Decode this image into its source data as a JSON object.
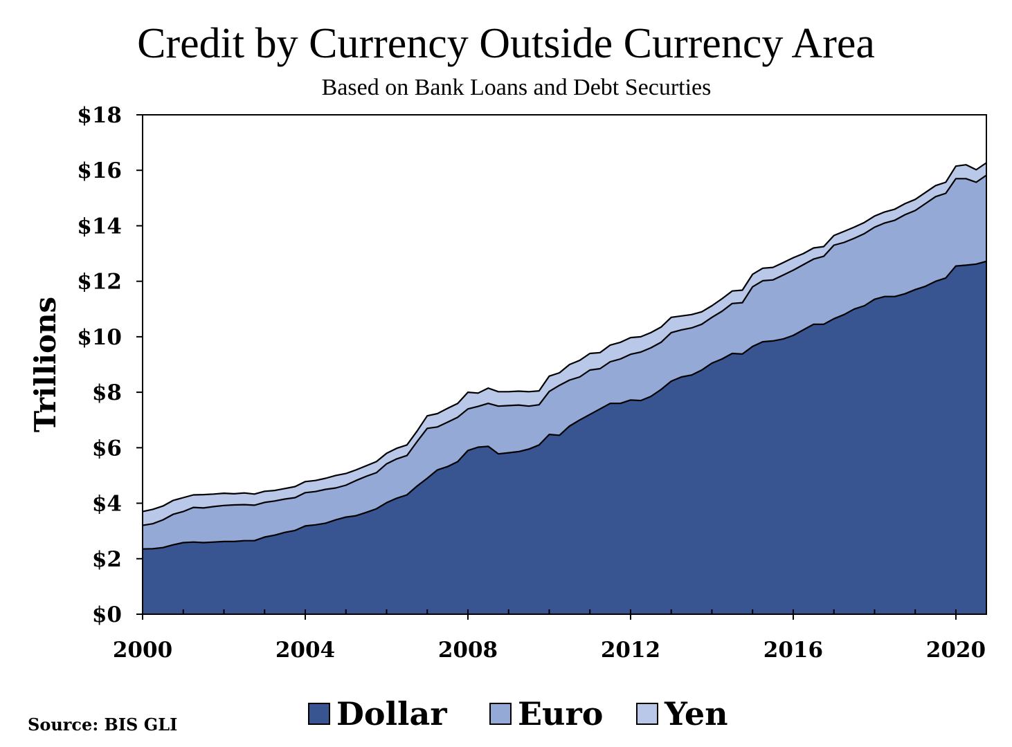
{
  "chart_data": {
    "type": "area",
    "stacked": true,
    "title": "Credit by Currency Outside Currency Area",
    "subtitle": "Based on Bank Loans and Debt Securties",
    "ylabel": "Trillions",
    "xlabel": "",
    "source": "Source: BIS GLI",
    "xlim": [
      2000,
      2020.75
    ],
    "ylim": [
      0,
      18
    ],
    "x_ticks": [
      2000,
      2004,
      2008,
      2012,
      2016,
      2020
    ],
    "x_tick_labels": [
      "2000",
      "2004",
      "2008",
      "2012",
      "2016",
      "2020"
    ],
    "y_ticks": [
      0,
      2,
      4,
      6,
      8,
      10,
      12,
      14,
      16,
      18
    ],
    "y_tick_labels": [
      "$0",
      "$2",
      "$4",
      "$6",
      "$8",
      "$10",
      "$12",
      "$14",
      "$16",
      "$18"
    ],
    "grid": false,
    "legend": "bottom",
    "x": [
      2000,
      2000.25,
      2000.5,
      2000.75,
      2001,
      2001.25,
      2001.5,
      2001.75,
      2002,
      2002.25,
      2002.5,
      2002.75,
      2003,
      2003.25,
      2003.5,
      2003.75,
      2004,
      2004.25,
      2004.5,
      2004.75,
      2005,
      2005.25,
      2005.5,
      2005.75,
      2006,
      2006.25,
      2006.5,
      2006.75,
      2007,
      2007.25,
      2007.5,
      2007.75,
      2008,
      2008.25,
      2008.5,
      2008.75,
      2009,
      2009.25,
      2009.5,
      2009.75,
      2010,
      2010.25,
      2010.5,
      2010.75,
      2011,
      2011.25,
      2011.5,
      2011.75,
      2012,
      2012.25,
      2012.5,
      2012.75,
      2013,
      2013.25,
      2013.5,
      2013.75,
      2014,
      2014.25,
      2014.5,
      2014.75,
      2015,
      2015.25,
      2015.5,
      2015.75,
      2016,
      2016.25,
      2016.5,
      2016.75,
      2017,
      2017.25,
      2017.5,
      2017.75,
      2018,
      2018.25,
      2018.5,
      2018.75,
      2019,
      2019.25,
      2019.5,
      2019.75,
      2020,
      2020.25,
      2020.5,
      2020.75
    ],
    "series": [
      {
        "name": "Dollar",
        "color": "#385592",
        "values": [
          2.35,
          2.36,
          2.4,
          2.5,
          2.58,
          2.6,
          2.58,
          2.6,
          2.62,
          2.62,
          2.65,
          2.65,
          2.78,
          2.85,
          2.95,
          3.02,
          3.18,
          3.22,
          3.28,
          3.4,
          3.5,
          3.55,
          3.67,
          3.8,
          4.02,
          4.18,
          4.3,
          4.62,
          4.9,
          5.2,
          5.32,
          5.5,
          5.9,
          6.02,
          6.05,
          5.78,
          5.82,
          5.86,
          5.95,
          6.1,
          6.48,
          6.45,
          6.78,
          7.0,
          7.2,
          7.4,
          7.6,
          7.6,
          7.72,
          7.7,
          7.85,
          8.1,
          8.4,
          8.55,
          8.62,
          8.8,
          9.05,
          9.2,
          9.4,
          9.38,
          9.65,
          9.82,
          9.85,
          9.92,
          10.05,
          10.25,
          10.45,
          10.45,
          10.65,
          10.8,
          11.0,
          11.12,
          11.35,
          11.45,
          11.45,
          11.55,
          11.7,
          11.82,
          12.0,
          12.12,
          12.55,
          12.58,
          12.62,
          12.72
        ]
      },
      {
        "name": "Euro",
        "color": "#94a9d6",
        "values": [
          0.85,
          0.9,
          1.0,
          1.1,
          1.12,
          1.25,
          1.25,
          1.28,
          1.3,
          1.32,
          1.3,
          1.28,
          1.25,
          1.23,
          1.2,
          1.18,
          1.2,
          1.2,
          1.22,
          1.15,
          1.15,
          1.27,
          1.3,
          1.3,
          1.4,
          1.42,
          1.42,
          1.6,
          1.8,
          1.55,
          1.6,
          1.6,
          1.5,
          1.47,
          1.55,
          1.72,
          1.7,
          1.68,
          1.55,
          1.45,
          1.55,
          1.8,
          1.66,
          1.55,
          1.6,
          1.45,
          1.5,
          1.6,
          1.65,
          1.75,
          1.75,
          1.7,
          1.75,
          1.7,
          1.7,
          1.65,
          1.65,
          1.72,
          1.8,
          1.85,
          2.15,
          2.2,
          2.2,
          2.3,
          2.35,
          2.35,
          2.35,
          2.45,
          2.65,
          2.6,
          2.55,
          2.6,
          2.6,
          2.65,
          2.75,
          2.85,
          2.85,
          2.98,
          3.05,
          3.05,
          3.15,
          3.12,
          2.95,
          3.1
        ]
      },
      {
        "name": "Yen",
        "color": "#b9c7e8",
        "values": [
          0.5,
          0.52,
          0.5,
          0.5,
          0.5,
          0.45,
          0.48,
          0.45,
          0.44,
          0.4,
          0.42,
          0.4,
          0.4,
          0.38,
          0.38,
          0.4,
          0.4,
          0.4,
          0.4,
          0.45,
          0.42,
          0.38,
          0.38,
          0.4,
          0.38,
          0.38,
          0.38,
          0.38,
          0.45,
          0.48,
          0.5,
          0.5,
          0.6,
          0.48,
          0.55,
          0.52,
          0.5,
          0.5,
          0.52,
          0.5,
          0.55,
          0.45,
          0.56,
          0.6,
          0.6,
          0.58,
          0.6,
          0.6,
          0.6,
          0.55,
          0.55,
          0.55,
          0.55,
          0.5,
          0.48,
          0.45,
          0.42,
          0.45,
          0.45,
          0.45,
          0.45,
          0.45,
          0.45,
          0.45,
          0.45,
          0.4,
          0.4,
          0.35,
          0.35,
          0.4,
          0.4,
          0.4,
          0.4,
          0.4,
          0.4,
          0.4,
          0.4,
          0.4,
          0.4,
          0.4,
          0.45,
          0.5,
          0.45,
          0.45
        ]
      }
    ]
  }
}
